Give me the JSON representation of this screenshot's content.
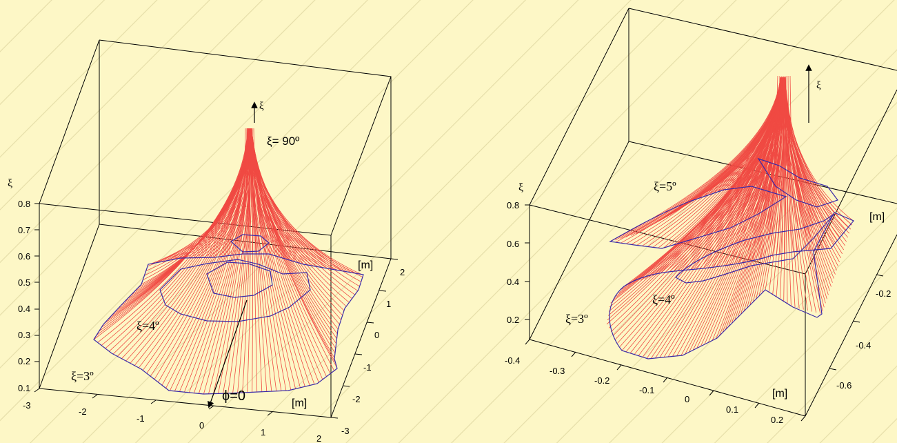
{
  "chart_data": [
    {
      "type": "surface3d",
      "title": "",
      "zlabel": "ξ",
      "zticks": [
        "0.1",
        "0.2",
        "0.3",
        "0.4",
        "0.5",
        "0.6",
        "0.7",
        "0.8"
      ],
      "xticks": [
        "-3",
        "-2",
        "-1",
        "0",
        "1",
        "2"
      ],
      "yticks": [
        "-3",
        "-2",
        "-1",
        "0",
        "1",
        "2"
      ],
      "xunit": "[m]",
      "yunit": "[m]",
      "annotations": {
        "top": "ξ= 90º",
        "axis_arrow": "ξ",
        "phi": "ϕ=0",
        "contour_outer": "ξ=3º",
        "contour_mid": "ξ=4º"
      },
      "colors": {
        "mesh": "#f04a43",
        "contour": "#3a2aa8",
        "box": "#000000"
      }
    },
    {
      "type": "surface3d",
      "title": "",
      "zlabel": "ξ",
      "zticks": [
        "0.2",
        "0.4",
        "0.6",
        "0.8"
      ],
      "xticks": [
        "-0.4",
        "-0.3",
        "-0.2",
        "-0.1",
        "0",
        "0.1",
        "0.2"
      ],
      "yticks": [
        "-0.6",
        "-0.4",
        "-0.2"
      ],
      "xunit": "[m]",
      "yunit": "[m]",
      "annotations": {
        "axis_arrow": "ξ",
        "contour_top": "ξ=5º",
        "contour_mid": "ξ=4º",
        "contour_outer": "ξ=3º"
      },
      "colors": {
        "mesh": "#f04a43",
        "contour": "#3a2aa8",
        "box": "#000000"
      }
    }
  ]
}
